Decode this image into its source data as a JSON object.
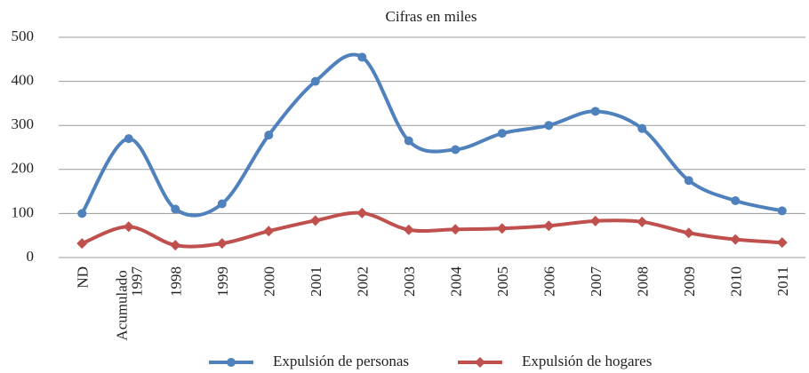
{
  "chart_data": {
    "type": "line",
    "title": "Cifras en miles",
    "categories": [
      "ND",
      "Acumulado 1997",
      "1998",
      "1999",
      "2000",
      "2001",
      "2002",
      "2003",
      "2004",
      "2005",
      "2006",
      "2007",
      "2008",
      "2009",
      "2010",
      "2011"
    ],
    "series": [
      {
        "name": "Expulsión de personas",
        "color": "#4f81bd",
        "marker": "circle",
        "values": [
          100,
          270,
          110,
          122,
          278,
          400,
          455,
          265,
          245,
          282,
          300,
          332,
          293,
          175,
          129,
          106
        ]
      },
      {
        "name": "Expulsión de hogares",
        "color": "#c0504d",
        "marker": "diamond",
        "values": [
          32,
          70,
          28,
          32,
          60,
          84,
          101,
          63,
          64,
          66,
          72,
          83,
          81,
          56,
          41,
          34
        ]
      }
    ],
    "ylim": [
      0,
      500
    ],
    "yticks": [
      0,
      100,
      200,
      300,
      400,
      500
    ],
    "grid": true,
    "smooth": true,
    "legend": "bottom"
  }
}
